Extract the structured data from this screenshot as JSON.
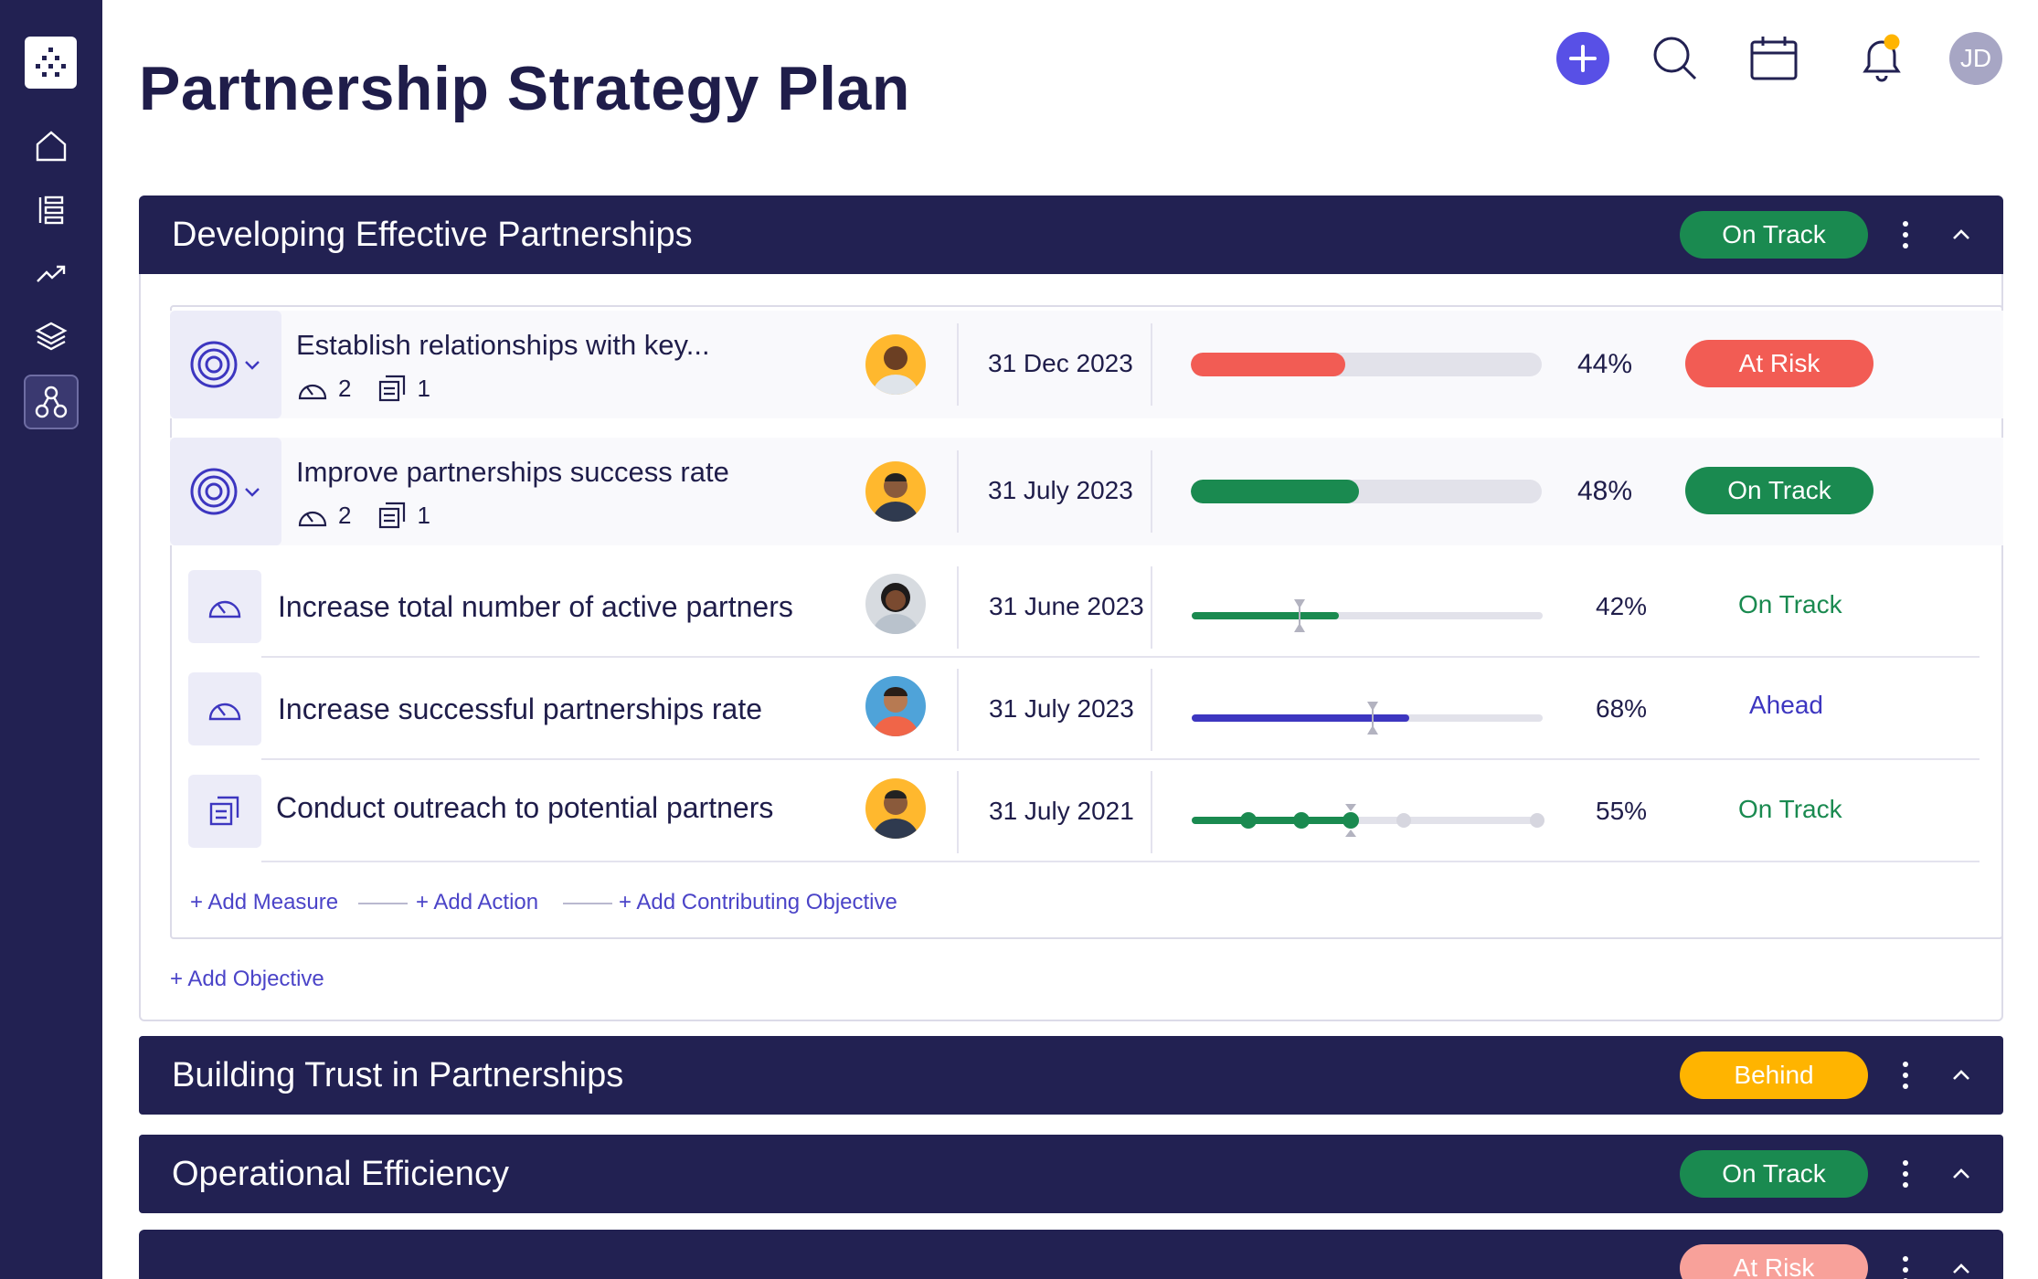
{
  "page": {
    "title": "Partnership Strategy Plan"
  },
  "header": {
    "user_initials": "JD"
  },
  "colors": {
    "navy": "#222152",
    "green": "#1a8a50",
    "red": "#f25c54",
    "amber": "#ffb400",
    "blue": "#3d36c0",
    "pink": "#f8a19a"
  },
  "sections": [
    {
      "title": "Developing Effective Partnerships",
      "status": "On Track",
      "objectives": [
        {
          "title": "Establish relationships with key...",
          "measures_count": "2",
          "actions_count": "1",
          "date": "31 Dec 2023",
          "progress": 44,
          "progress_label": "44%",
          "status": "At Risk"
        },
        {
          "title": "Improve partnerships success rate",
          "measures_count": "2",
          "actions_count": "1",
          "date": "31 July 2023",
          "progress": 48,
          "progress_label": "48%",
          "status": "On Track"
        }
      ],
      "measures": [
        {
          "title": "Increase total number of active partners",
          "date": "31 June 2023",
          "progress": 42,
          "progress_label": "42%",
          "status": "On Track"
        },
        {
          "title": "Increase successful partnerships rate",
          "date": "31 July 2023",
          "progress": 68,
          "progress_label": "68%",
          "status": "Ahead"
        },
        {
          "title": "Conduct outreach to potential partners",
          "date": "31 July 2021",
          "progress": 55,
          "progress_label": "55%",
          "status": "On Track"
        }
      ],
      "links": {
        "add_measure": "+ Add Measure",
        "add_action": "+ Add Action",
        "add_contributing": "+ Add Contributing Objective",
        "add_objective": "+ Add Objective"
      }
    },
    {
      "title": "Building Trust in Partnerships",
      "status": "Behind"
    },
    {
      "title": "Operational Efficiency",
      "status": "On Track"
    },
    {
      "title": "",
      "status": "At Risk"
    }
  ]
}
